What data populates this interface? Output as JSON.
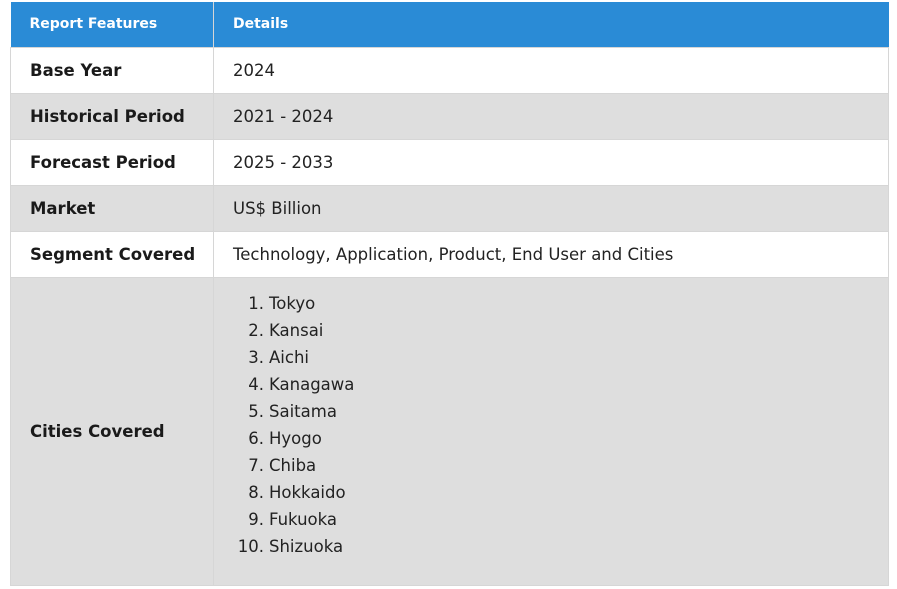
{
  "header": {
    "col1": "Report Features",
    "col2": "Details"
  },
  "rows": [
    {
      "label": "Base Year",
      "value": "2024"
    },
    {
      "label": "Historical Period",
      "value": "2021 - 2024"
    },
    {
      "label": "Forecast Period",
      "value": "2025 - 2033"
    },
    {
      "label": "Market",
      "value": "US$ Billion"
    },
    {
      "label": "Segment Covered",
      "value": "Technology, Application, Product, End User and Cities"
    }
  ],
  "cities": {
    "label": "Cities Covered",
    "items": [
      {
        "num": "1.",
        "name": "Tokyo"
      },
      {
        "num": "2.",
        "name": "Kansai"
      },
      {
        "num": "3.",
        "name": "Aichi"
      },
      {
        "num": "4.",
        "name": "Kanagawa"
      },
      {
        "num": "5.",
        "name": "Saitama"
      },
      {
        "num": "6.",
        "name": "Hyogo"
      },
      {
        "num": "7.",
        "name": "Chiba"
      },
      {
        "num": "8.",
        "name": "Hokkaido"
      },
      {
        "num": "9.",
        "name": "Fukuoka"
      },
      {
        "num": "10.",
        "name": "Shizuoka"
      }
    ]
  },
  "colors": {
    "header_bg": "#2a8bd6",
    "alt_row_bg": "#dedede",
    "border": "#d6d6d6"
  }
}
